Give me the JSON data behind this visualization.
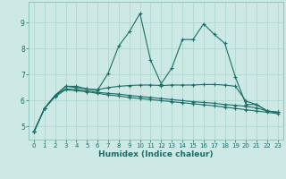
{
  "xlabel": "Humidex (Indice chaleur)",
  "ylabel": "",
  "background_color": "#cce9e5",
  "grid_color": "#aad4ce",
  "line_color": "#1a6e65",
  "xlim": [
    -0.5,
    23.5
  ],
  "ylim": [
    4.5,
    9.8
  ],
  "xticks": [
    0,
    1,
    2,
    3,
    4,
    5,
    6,
    7,
    8,
    9,
    10,
    11,
    12,
    13,
    14,
    15,
    16,
    17,
    18,
    19,
    20,
    21,
    22,
    23
  ],
  "yticks": [
    5,
    6,
    7,
    8,
    9
  ],
  "lines": [
    {
      "x": [
        0,
        1,
        2,
        3,
        4,
        5,
        6,
        7,
        8,
        9,
        10,
        11,
        12,
        13,
        14,
        15,
        16,
        17,
        18,
        19,
        20,
        21,
        22,
        23
      ],
      "y": [
        4.8,
        5.7,
        6.2,
        6.55,
        6.55,
        6.45,
        6.4,
        7.05,
        8.1,
        8.65,
        9.35,
        7.55,
        6.65,
        7.25,
        8.35,
        8.35,
        8.95,
        8.55,
        8.2,
        6.9,
        5.85,
        5.85,
        5.6,
        5.55
      ]
    },
    {
      "x": [
        0,
        1,
        2,
        3,
        4,
        5,
        6,
        7,
        8,
        9,
        10,
        11,
        12,
        13,
        14,
        15,
        16,
        17,
        18,
        19,
        20,
        21,
        22,
        23
      ],
      "y": [
        4.8,
        5.7,
        6.2,
        6.55,
        6.5,
        6.45,
        6.42,
        6.5,
        6.55,
        6.58,
        6.6,
        6.6,
        6.58,
        6.6,
        6.6,
        6.6,
        6.62,
        6.62,
        6.6,
        6.55,
        5.98,
        5.85,
        5.6,
        5.55
      ]
    },
    {
      "x": [
        0,
        1,
        2,
        3,
        4,
        5,
        6,
        7,
        8,
        9,
        10,
        11,
        12,
        13,
        14,
        15,
        16,
        17,
        18,
        19,
        20,
        21,
        22,
        23
      ],
      "y": [
        4.8,
        5.7,
        6.2,
        6.45,
        6.42,
        6.38,
        6.32,
        6.28,
        6.25,
        6.2,
        6.16,
        6.12,
        6.08,
        6.04,
        6.0,
        5.96,
        5.93,
        5.9,
        5.85,
        5.82,
        5.78,
        5.72,
        5.6,
        5.55
      ]
    },
    {
      "x": [
        0,
        1,
        2,
        3,
        4,
        5,
        6,
        7,
        8,
        9,
        10,
        11,
        12,
        13,
        14,
        15,
        16,
        17,
        18,
        19,
        20,
        21,
        22,
        23
      ],
      "y": [
        4.8,
        5.7,
        6.15,
        6.42,
        6.38,
        6.34,
        6.28,
        6.22,
        6.18,
        6.12,
        6.08,
        6.04,
        6.0,
        5.96,
        5.92,
        5.88,
        5.84,
        5.8,
        5.75,
        5.7,
        5.65,
        5.6,
        5.55,
        5.5
      ]
    }
  ]
}
